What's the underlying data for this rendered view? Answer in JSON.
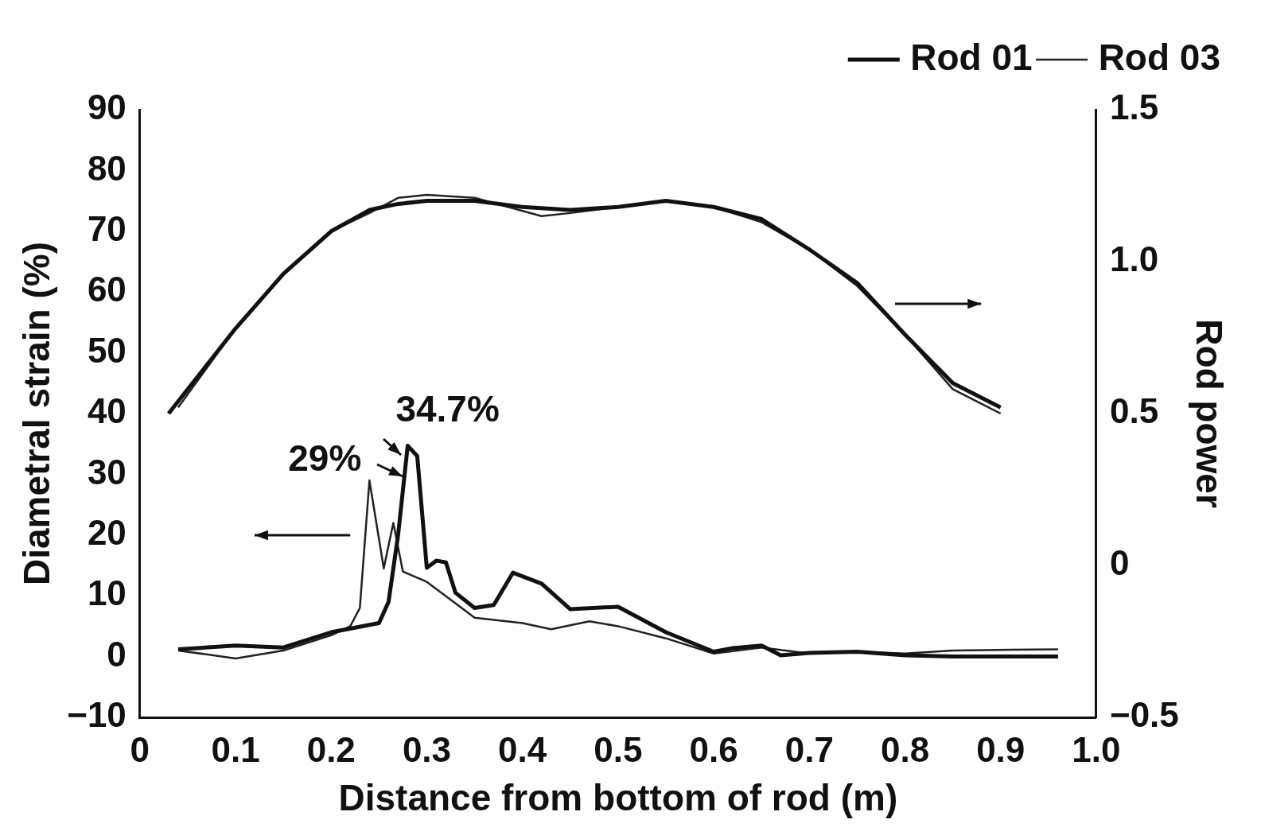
{
  "chart_data": {
    "type": "line",
    "xlabel": "Distance from bottom of rod (m)",
    "ylabel": "Diametral strain (%)",
    "y2label": "Rod power",
    "xlim": [
      0,
      1
    ],
    "xticks": [
      0,
      0.1,
      0.2,
      0.3,
      0.4,
      0.5,
      0.6,
      0.7,
      0.8,
      0.9,
      {
        "value": 1,
        "label": "1.0"
      }
    ],
    "ylim": [
      -10,
      90
    ],
    "yticks": [
      {
        "value": -10,
        "label": "−10"
      },
      0,
      10,
      20,
      30,
      40,
      50,
      60,
      70,
      80,
      90
    ],
    "y2lim": [
      -0.5,
      1.5
    ],
    "y2ticks": [
      {
        "value": -0.5,
        "label": "−0.5"
      },
      0,
      0.5,
      {
        "value": 1,
        "label": "1.0"
      },
      1.5
    ],
    "grid": false,
    "legend": "top right",
    "marker": "none",
    "line_style": "solid",
    "annotations": [
      {
        "text": "29%",
        "x": 0.24,
        "y": 29
      },
      {
        "text": "34.7%",
        "x": 0.28,
        "y": 34.7
      }
    ],
    "series": [
      {
        "name": "Rod 01",
        "color": "#111111",
        "x": [
          0.04,
          0.1,
          0.15,
          0.2,
          0.25,
          0.26,
          0.27,
          0.28,
          0.29,
          0.3,
          0.31,
          0.32,
          0.33,
          0.35,
          0.37,
          0.39,
          0.42,
          0.45,
          0.5,
          0.55,
          0.6,
          0.62,
          0.65,
          0.67,
          0.7,
          0.75,
          0.8,
          0.85,
          0.96
        ],
        "values": [
          1.2,
          1.8,
          1.5,
          4,
          5.5,
          9,
          20,
          34.7,
          33,
          14.6,
          15.8,
          15.5,
          10.5,
          8,
          8.5,
          13.8,
          12,
          7.8,
          8.2,
          4,
          0.8,
          1.4,
          1.8,
          0.2,
          0.6,
          0.8,
          0.2,
          0,
          0
        ]
      },
      {
        "name": "Rod 03",
        "color": "#222222",
        "x": [
          0.04,
          0.1,
          0.15,
          0.2,
          0.22,
          0.23,
          0.24,
          0.255,
          0.265,
          0.275,
          0.3,
          0.35,
          0.4,
          0.43,
          0.47,
          0.5,
          0.55,
          0.6,
          0.65,
          0.7,
          0.75,
          0.8,
          0.85,
          0.96
        ],
        "values": [
          1,
          -0.3,
          1,
          3.5,
          5,
          8,
          29,
          14.5,
          22,
          14,
          12.3,
          6.4,
          5.5,
          4.5,
          5.8,
          5,
          3,
          0.5,
          1.5,
          0.5,
          0.8,
          0.5,
          1,
          1.2
        ]
      },
      {
        "color": "#111111",
        "axis": "y2",
        "x": [
          0.03,
          0.1,
          0.15,
          0.2,
          0.24,
          0.27,
          0.3,
          0.35,
          0.4,
          0.45,
          0.5,
          0.55,
          0.6,
          0.65,
          0.7,
          0.75,
          0.8,
          0.85,
          0.9
        ],
        "values": [
          0.5,
          0.78,
          0.96,
          1.1,
          1.17,
          1.19,
          1.2,
          1.2,
          1.18,
          1.17,
          1.18,
          1.2,
          1.18,
          1.14,
          1.04,
          0.93,
          0.76,
          0.6,
          0.52
        ]
      },
      {
        "color": "#222222",
        "axis": "y2",
        "x": [
          0.04,
          0.1,
          0.15,
          0.2,
          0.24,
          0.27,
          0.3,
          0.35,
          0.42,
          0.45,
          0.5,
          0.55,
          0.6,
          0.65,
          0.7,
          0.75,
          0.8,
          0.85,
          0.9
        ],
        "values": [
          0.52,
          0.78,
          0.96,
          1.1,
          1.16,
          1.21,
          1.22,
          1.21,
          1.15,
          1.16,
          1.18,
          1.2,
          1.18,
          1.13,
          1.04,
          0.92,
          0.76,
          0.58,
          0.5
        ]
      }
    ]
  }
}
